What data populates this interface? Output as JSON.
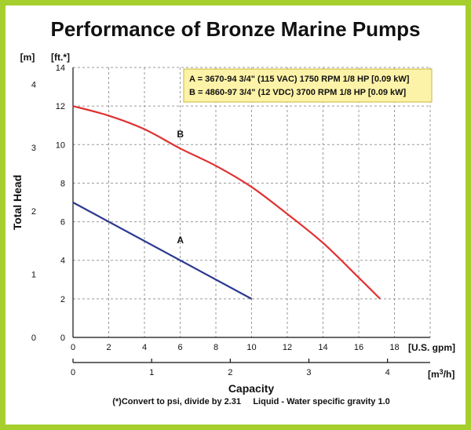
{
  "chart_data": {
    "type": "line",
    "title": "Performance of Bronze Marine Pumps",
    "xlabel": "Capacity",
    "ylabel": "Total Head",
    "x_unit_primary": "[U.S. gpm]",
    "x_unit_secondary": "[m³/h]",
    "y_unit_primary": "[ft.*]",
    "y_unit_secondary": "[m]",
    "xlim": [
      0,
      20
    ],
    "ylim": [
      0,
      14
    ],
    "x_ticks": [
      0,
      2,
      4,
      6,
      8,
      10,
      12,
      14,
      16,
      18
    ],
    "y_ticks": [
      0,
      2,
      4,
      6,
      8,
      10,
      12,
      14
    ],
    "x2_ticks": [
      0,
      1,
      2,
      3,
      4
    ],
    "y2_ticks": [
      0,
      1,
      2,
      3,
      4
    ],
    "grid": true,
    "legend_position": "top-right",
    "legend": [
      "A = 3670-94 3/4\" (115 VAC) 1750 RPM 1/8 HP [0.09 kW]",
      "B = 4860-97 3/4\" (12 VDC) 3700 RPM 1/8 HP [0.09 kW]"
    ],
    "series": [
      {
        "name": "A",
        "color": "#2b3990",
        "x": [
          0,
          10
        ],
        "y": [
          7,
          2
        ],
        "label_at": [
          5,
          5
        ]
      },
      {
        "name": "B",
        "color": "#e03131",
        "x": [
          0,
          2,
          4,
          6,
          8,
          10,
          12,
          14,
          16,
          17.2
        ],
        "y": [
          12,
          11.5,
          10.8,
          9.8,
          8.9,
          7.8,
          6.4,
          4.9,
          3.1,
          2
        ],
        "label_at": [
          5,
          10.5
        ]
      }
    ],
    "footnote": "(*)Convert to psi, divide by 2.31     Liquid - Water specific gravity 1.0"
  }
}
